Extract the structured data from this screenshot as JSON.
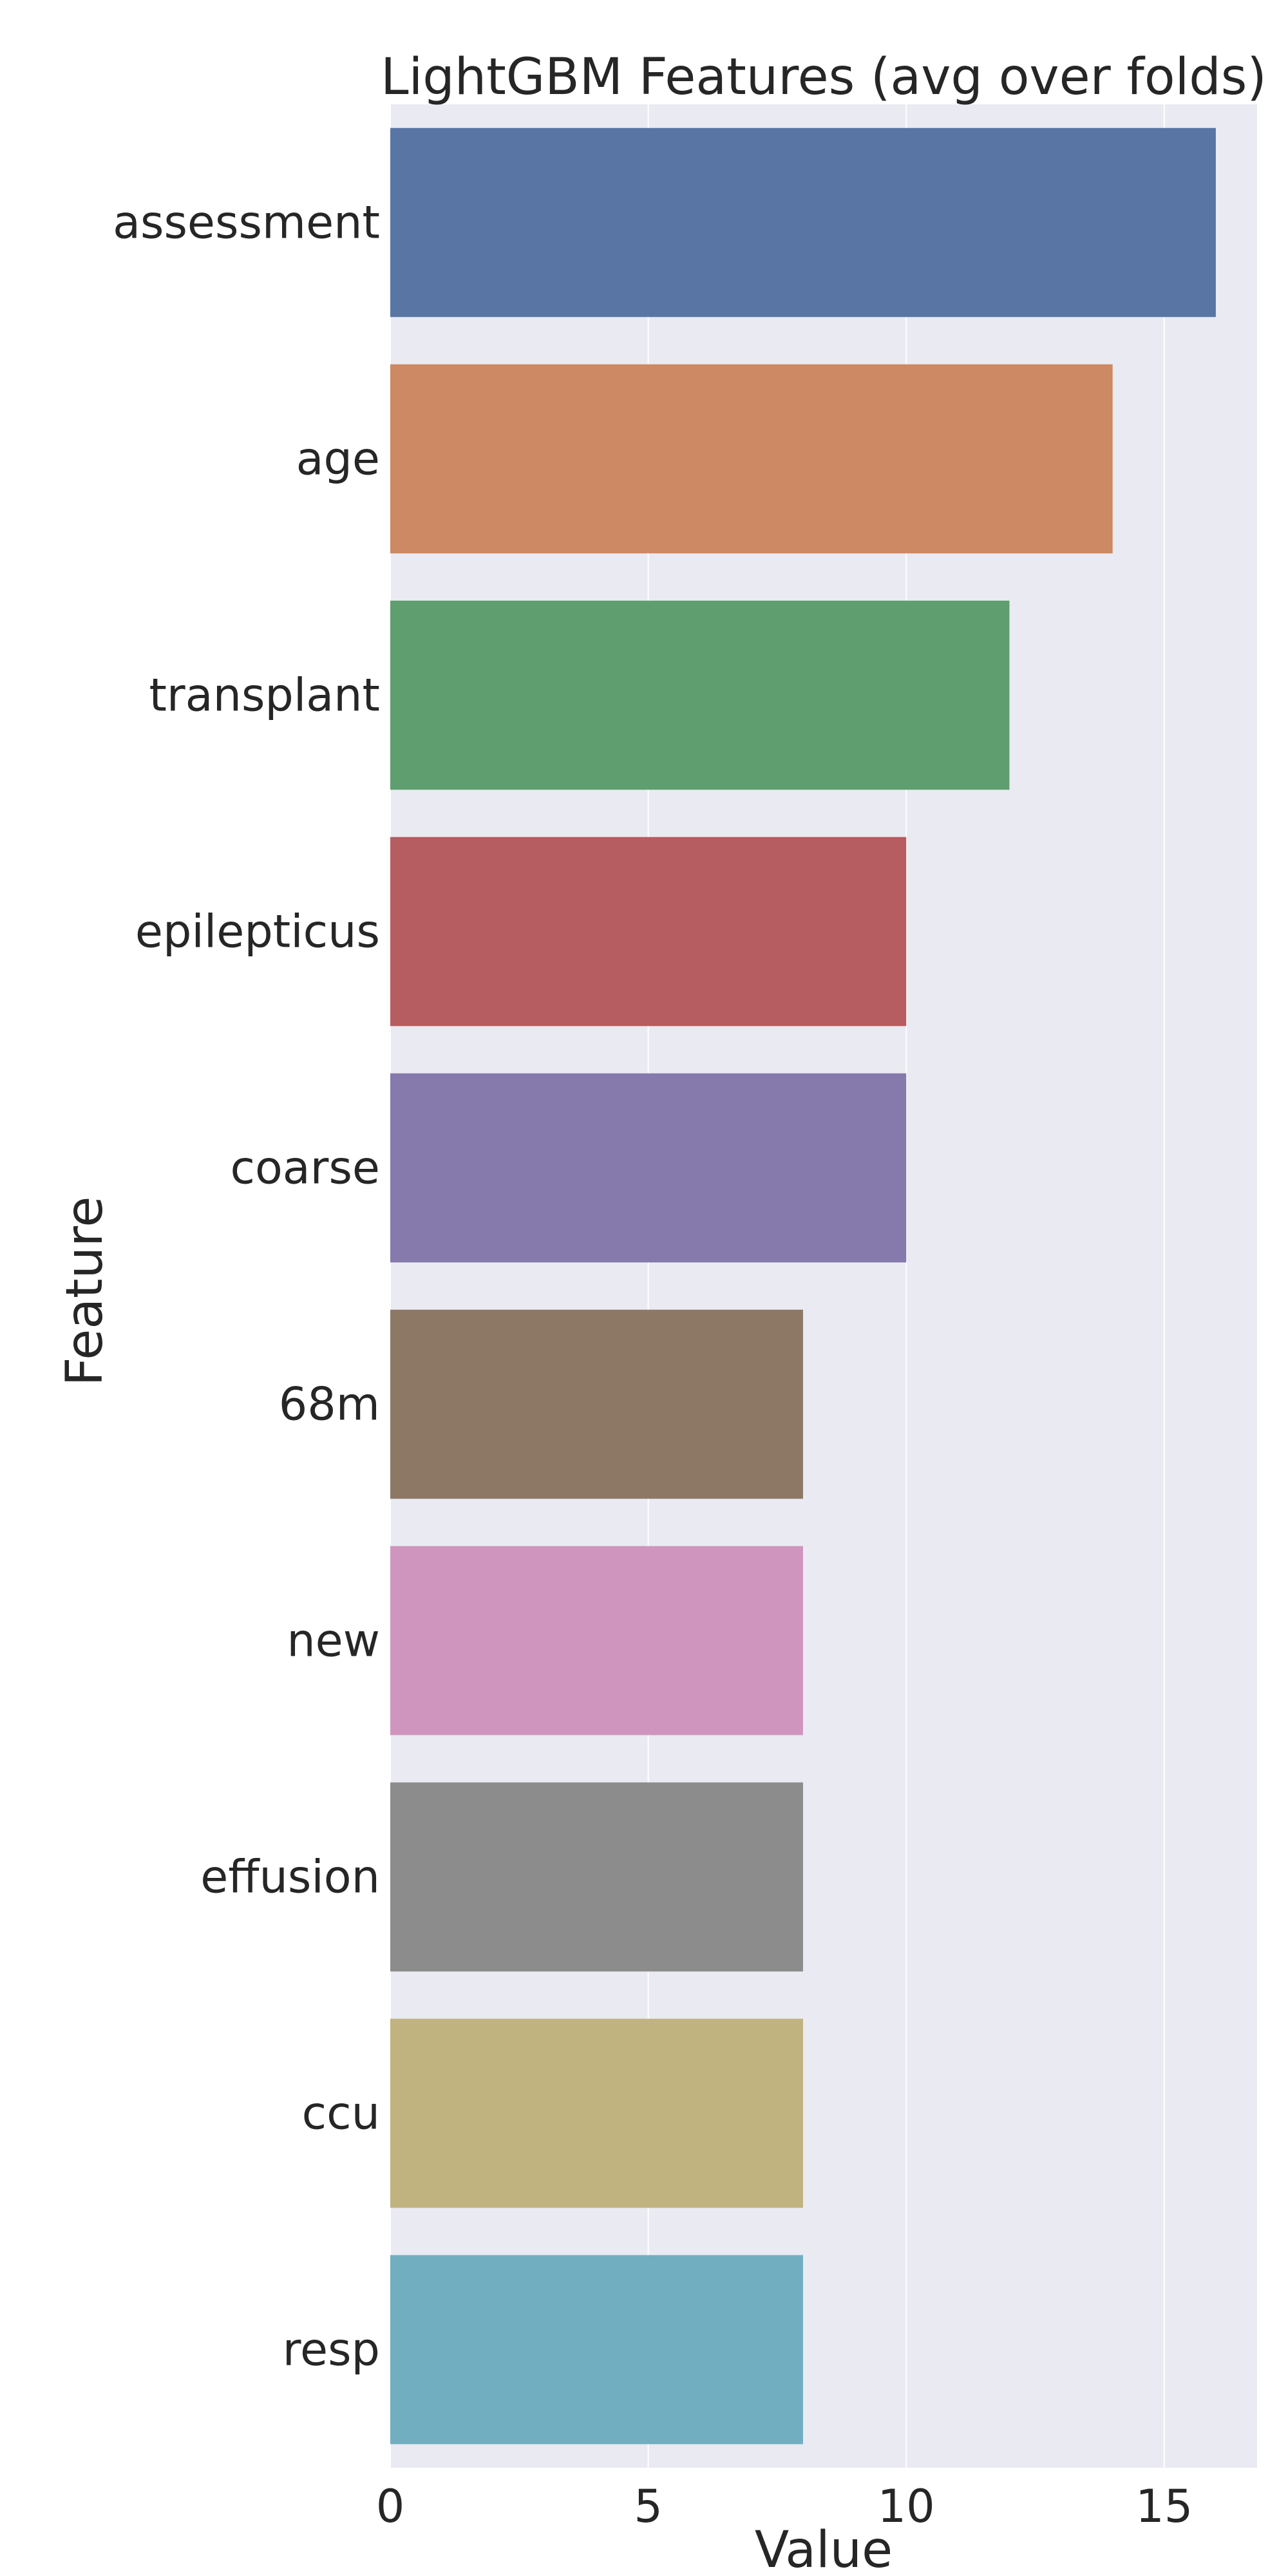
{
  "chart_data": {
    "type": "bar",
    "orientation": "horizontal",
    "title": "LightGBM Features (avg over folds)",
    "xlabel": "Value",
    "ylabel": "Feature",
    "categories": [
      "assessment",
      "age",
      "transplant",
      "epilepticus",
      "coarse",
      "68m",
      "new",
      "effusion",
      "ccu",
      "resp"
    ],
    "values": [
      16,
      14,
      12,
      10,
      10,
      8,
      8,
      8,
      8,
      8
    ],
    "xlim": [
      0,
      16.8
    ],
    "xticks": [
      0,
      5,
      10,
      15
    ],
    "grid": true,
    "colors": [
      "#5975a4",
      "#cc8963",
      "#5f9e6e",
      "#b55d60",
      "#857aab",
      "#8d7866",
      "#d095bf",
      "#8c8c8c",
      "#c1b37f",
      "#71aec0"
    ],
    "background": "#eaeaf2",
    "grid_color": "#ffffff",
    "text_color": "#262626"
  }
}
